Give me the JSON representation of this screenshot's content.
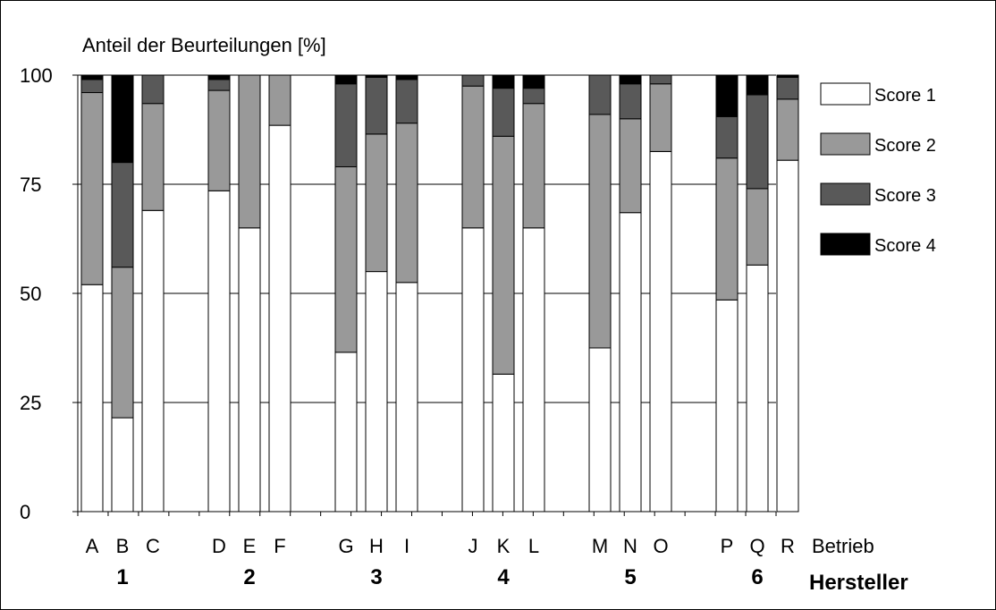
{
  "chart_data": {
    "type": "bar",
    "stacked": true,
    "title": "Anteil der Beurteilungen [%]",
    "xlabel": "Betrieb",
    "group_axis_label": "Hersteller",
    "ylim": [
      0,
      100
    ],
    "yticks": [
      0,
      25,
      50,
      75,
      100
    ],
    "grid": "horizontal",
    "legend_position": "right",
    "categories": [
      "A",
      "B",
      "C",
      "D",
      "E",
      "F",
      "G",
      "H",
      "I",
      "J",
      "K",
      "L",
      "M",
      "N",
      "O",
      "P",
      "Q",
      "R"
    ],
    "groups": [
      {
        "label": "1",
        "members": [
          "A",
          "B",
          "C"
        ]
      },
      {
        "label": "2",
        "members": [
          "D",
          "E",
          "F"
        ]
      },
      {
        "label": "3",
        "members": [
          "G",
          "H",
          "I"
        ]
      },
      {
        "label": "4",
        "members": [
          "J",
          "K",
          "L"
        ]
      },
      {
        "label": "5",
        "members": [
          "M",
          "N",
          "O"
        ]
      },
      {
        "label": "6",
        "members": [
          "P",
          "Q",
          "R"
        ]
      }
    ],
    "series": [
      {
        "name": "Score 1",
        "color": "#ffffff",
        "values": [
          52,
          21.5,
          69,
          73.5,
          65,
          88.5,
          36.5,
          55,
          52.5,
          65,
          31.5,
          65,
          37.5,
          68.5,
          82.5,
          48.5,
          56.5,
          80.5
        ]
      },
      {
        "name": "Score 2",
        "color": "#999999",
        "values": [
          44,
          34.5,
          24.5,
          23,
          35,
          11.5,
          42.5,
          31.5,
          36.5,
          32.5,
          54.5,
          28.5,
          53.5,
          21.5,
          15.5,
          32.5,
          17.5,
          14
        ]
      },
      {
        "name": "Score 3",
        "color": "#595959",
        "values": [
          3,
          24,
          6.5,
          2.5,
          0,
          0,
          19,
          13,
          10,
          2.5,
          11,
          3.5,
          9,
          8,
          2,
          9.5,
          21.5,
          5
        ]
      },
      {
        "name": "Score 4",
        "color": "#000000",
        "values": [
          1,
          20,
          0,
          1,
          0,
          0,
          2,
          0.5,
          1,
          0,
          3,
          3,
          0,
          2,
          0,
          9.5,
          4.5,
          0.5
        ]
      }
    ]
  }
}
